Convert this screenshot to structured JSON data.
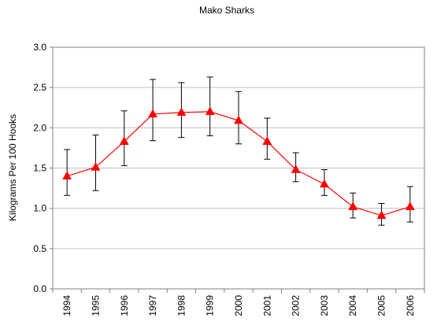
{
  "chart_data": {
    "type": "line",
    "title": "Mako Sharks",
    "xlabel": "",
    "ylabel": "Kilograms Per 100 Hooks",
    "categories": [
      "1994",
      "1995",
      "1996",
      "1997",
      "1998",
      "1999",
      "2000",
      "2001",
      "2002",
      "2003",
      "2004",
      "2005",
      "2006"
    ],
    "series": [
      {
        "values": [
          1.4,
          1.51,
          1.83,
          2.17,
          2.19,
          2.2,
          2.09,
          1.83,
          1.48,
          1.3,
          1.02,
          0.91,
          1.02
        ],
        "error_upper": [
          1.73,
          1.91,
          2.21,
          2.6,
          2.56,
          2.63,
          2.45,
          2.12,
          1.69,
          1.48,
          1.19,
          1.06,
          1.27
        ],
        "error_lower": [
          1.16,
          1.22,
          1.53,
          1.84,
          1.88,
          1.9,
          1.8,
          1.61,
          1.33,
          1.16,
          0.88,
          0.79,
          0.83
        ],
        "color": "#ff0000",
        "marker": "triangle"
      }
    ],
    "ylim": [
      0.0,
      3.0
    ],
    "yticks": [
      "0.0",
      "0.5",
      "1.0",
      "1.5",
      "2.0",
      "2.5",
      "3.0"
    ],
    "grid": "horizontal",
    "legend": "none",
    "colors": {
      "line": "#ff0000",
      "marker": "#ff0000",
      "error_bar": "#000000",
      "grid": "#c0c0c0",
      "axis": "#808080"
    }
  }
}
